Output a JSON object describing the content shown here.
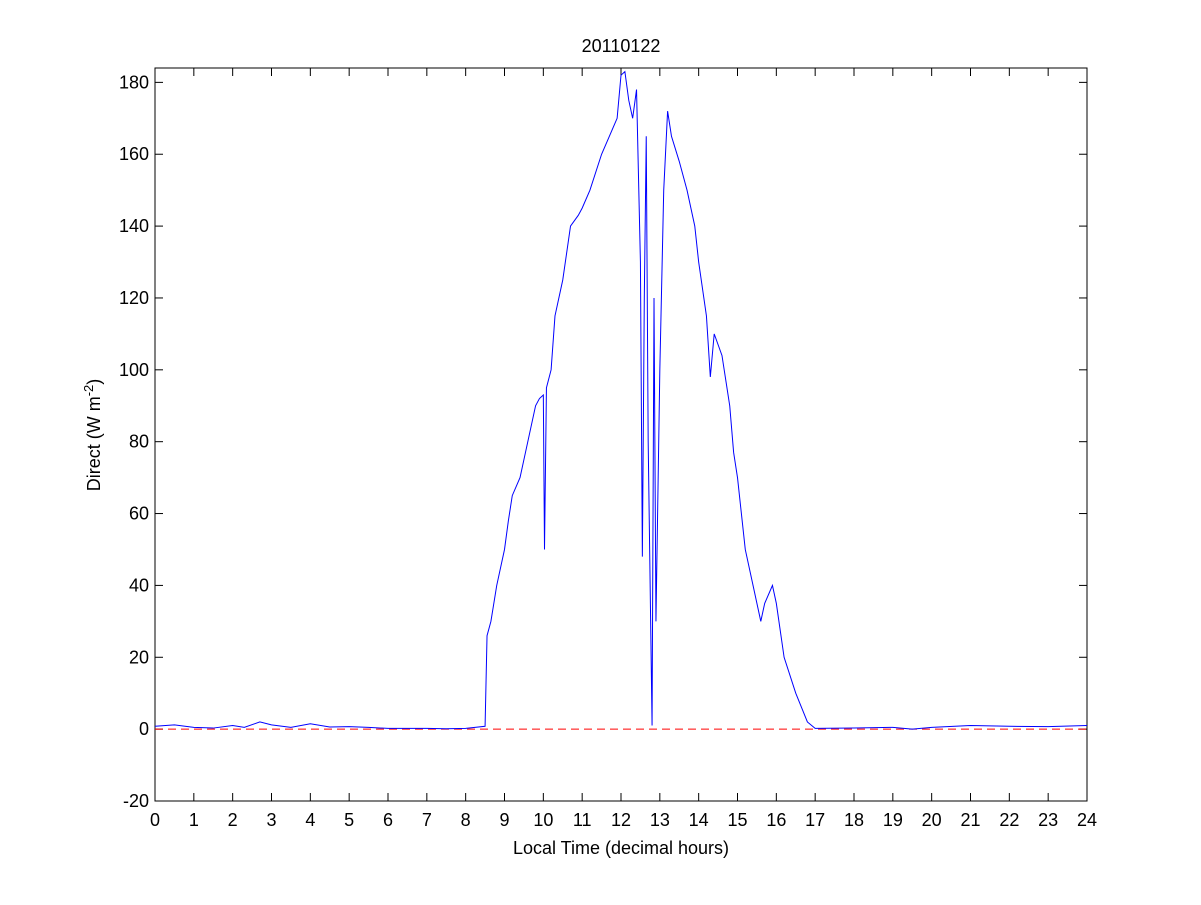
{
  "chart_data": {
    "type": "line",
    "title": "20110122",
    "xlabel": "Local Time (decimal hours)",
    "ylabel": [
      "Direct (W m",
      "-2",
      ")"
    ],
    "x": [
      0,
      0.5,
      1,
      1.5,
      2,
      2.3,
      2.7,
      3,
      3.5,
      4,
      4.5,
      5,
      5.5,
      6,
      7,
      7.5,
      8,
      8.5,
      8.55,
      8.65,
      8.8,
      9,
      9.1,
      9.2,
      9.4,
      9.6,
      9.8,
      9.9,
      10,
      10.03,
      10.08,
      10.2,
      10.3,
      10.5,
      10.7,
      10.9,
      11,
      11.2,
      11.5,
      11.7,
      11.9,
      12,
      12.1,
      12.2,
      12.3,
      12.4,
      12.5,
      12.55,
      12.6,
      12.65,
      12.7,
      12.8,
      12.85,
      12.9,
      13,
      13.1,
      13.2,
      13.3,
      13.5,
      13.7,
      13.9,
      14,
      14.2,
      14.3,
      14.4,
      14.6,
      14.8,
      14.9,
      15,
      15.2,
      15.4,
      15.6,
      15.7,
      15.9,
      16,
      16.2,
      16.5,
      16.8,
      17,
      18,
      19,
      19.5,
      20,
      21,
      22,
      23,
      24
    ],
    "series": [
      {
        "color": "#0000ff",
        "values": [
          0.8,
          1.2,
          0.5,
          0.3,
          1.0,
          0.5,
          2.0,
          1.2,
          0.5,
          1.5,
          0.6,
          0.7,
          0.5,
          0.2,
          0.2,
          0.1,
          0.2,
          0.8,
          26,
          30,
          40,
          50,
          58,
          65,
          70,
          80,
          90,
          92,
          93,
          50,
          95,
          100,
          115,
          125,
          140,
          143,
          145,
          150,
          160,
          165,
          170,
          182,
          183,
          175,
          170,
          178,
          130,
          48,
          120,
          165,
          80,
          1,
          120,
          30,
          100,
          150,
          172,
          165,
          158,
          150,
          140,
          130,
          115,
          98,
          110,
          104,
          90,
          77,
          70,
          50,
          40,
          30,
          35,
          40,
          35,
          20,
          10,
          2,
          0.2,
          0.3,
          0.5,
          0,
          0.5,
          1.0,
          0.8,
          0.7,
          1.0
        ]
      }
    ],
    "reference_line": {
      "y": 0,
      "color": "#ff0000",
      "style": "dashed"
    },
    "xlim": [
      0,
      24
    ],
    "xticks": [
      0,
      1,
      2,
      3,
      4,
      5,
      6,
      7,
      8,
      9,
      10,
      11,
      12,
      13,
      14,
      15,
      16,
      17,
      18,
      19,
      20,
      21,
      22,
      23,
      24
    ],
    "ylim": [
      -20,
      184
    ],
    "yticks": [
      -20,
      0,
      20,
      40,
      60,
      80,
      100,
      120,
      140,
      160,
      180
    ],
    "grid": false
  }
}
